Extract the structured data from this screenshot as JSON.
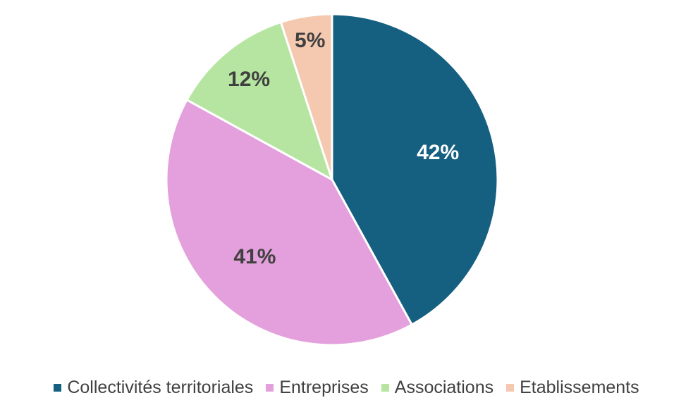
{
  "chart_data": {
    "type": "pie",
    "title": "",
    "slices": [
      {
        "name": "Collectivités territoriales",
        "value": 42,
        "label": "42%",
        "color": "#155f80",
        "label_color": "#ffffff"
      },
      {
        "name": "Entreprises",
        "value": 41,
        "label": "41%",
        "color": "#e4a0dc",
        "label_color": "#404040"
      },
      {
        "name": "Associations",
        "value": 12,
        "label": "12%",
        "color": "#b5e5a0",
        "label_color": "#404040"
      },
      {
        "name": "Etablissements",
        "value": 5,
        "label": "5%",
        "color": "#f5c8b0",
        "label_color": "#404040"
      }
    ],
    "legend_position": "bottom"
  }
}
